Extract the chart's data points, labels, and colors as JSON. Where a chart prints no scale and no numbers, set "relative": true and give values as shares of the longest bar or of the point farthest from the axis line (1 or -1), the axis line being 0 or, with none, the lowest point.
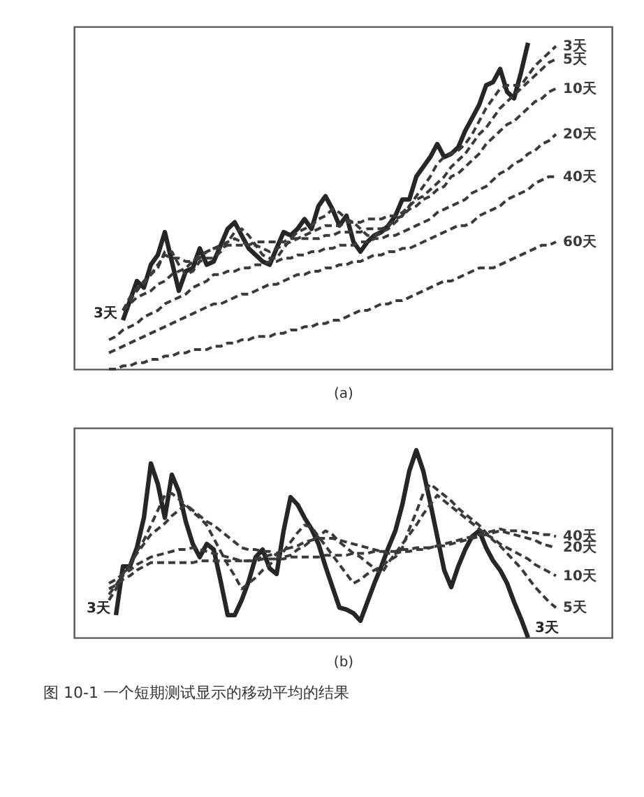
{
  "chart_data": [
    {
      "type": "line",
      "relative": true,
      "xlabel": "(a)",
      "annotations": [
        "3天"
      ],
      "categories": [
        null,
        null,
        null,
        null,
        null,
        null,
        null,
        null,
        null,
        null,
        null,
        null,
        null,
        null,
        null,
        null,
        null,
        null,
        null,
        null,
        null,
        null,
        null,
        null,
        null,
        null,
        null,
        null,
        null,
        null,
        null,
        null,
        null,
        null,
        null,
        null,
        null,
        null,
        null,
        null,
        null,
        null,
        null,
        null,
        null,
        null,
        null,
        null,
        null,
        null,
        null,
        null,
        null,
        null,
        null,
        null,
        null,
        null,
        null,
        null,
        null,
        null,
        null,
        null,
        null
      ],
      "series": [
        {
          "color": "#262626",
          "line_style": "solid",
          "values": [
            null,
            null,
            0.15,
            0.21,
            0.27,
            0.25,
            0.32,
            0.35,
            0.42,
            0.33,
            0.24,
            0.3,
            0.31,
            0.37,
            0.32,
            0.33,
            0.38,
            0.43,
            0.45,
            0.41,
            0.37,
            0.35,
            0.33,
            0.32,
            0.37,
            0.42,
            0.41,
            0.43,
            0.46,
            0.43,
            0.5,
            0.53,
            0.49,
            0.44,
            0.47,
            0.39,
            0.36,
            0.39,
            0.41,
            0.42,
            0.44,
            0.47,
            0.52,
            0.52,
            0.59,
            0.62,
            0.65,
            0.69,
            0.65,
            0.66,
            0.68,
            0.73,
            0.77,
            0.81,
            0.87,
            0.88,
            0.92,
            0.85,
            0.83,
            0.91,
            1.0,
            null,
            null,
            null,
            null
          ]
        },
        {
          "name": "3天",
          "color": "#3a3a3a",
          "line_style": "dashed",
          "values": [
            null,
            null,
            0.18,
            0.22,
            0.25,
            0.26,
            0.29,
            0.31,
            0.36,
            0.36,
            0.32,
            0.29,
            0.3,
            0.33,
            0.34,
            0.34,
            0.36,
            0.39,
            0.42,
            0.43,
            0.41,
            0.38,
            0.35,
            0.34,
            0.34,
            0.37,
            0.4,
            0.42,
            0.43,
            0.44,
            0.46,
            0.47,
            0.49,
            0.48,
            0.46,
            0.45,
            0.43,
            0.41,
            0.41,
            0.42,
            0.43,
            0.45,
            0.47,
            0.5,
            0.53,
            0.56,
            0.59,
            0.63,
            0.65,
            0.66,
            0.67,
            0.69,
            0.72,
            0.76,
            0.8,
            0.83,
            0.86,
            0.87,
            0.87,
            0.87,
            0.9,
            0.93,
            0.95,
            0.97,
            0.99
          ]
        },
        {
          "name": "5天",
          "color": "#3a3a3a",
          "line_style": "dashed",
          "values": [
            null,
            null,
            0.18,
            0.21,
            0.24,
            0.27,
            0.29,
            0.32,
            0.35,
            0.34,
            0.34,
            0.33,
            0.33,
            0.35,
            0.36,
            0.37,
            0.38,
            0.39,
            0.4,
            0.39,
            0.38,
            0.38,
            0.37,
            0.36,
            0.37,
            0.38,
            0.39,
            0.4,
            0.41,
            0.42,
            0.43,
            0.44,
            0.44,
            0.44,
            0.45,
            0.45,
            0.45,
            0.46,
            0.46,
            0.46,
            0.47,
            0.47,
            0.48,
            0.5,
            0.52,
            0.53,
            0.55,
            0.57,
            0.59,
            0.62,
            0.64,
            0.66,
            0.69,
            0.72,
            0.74,
            0.77,
            0.8,
            0.82,
            0.84,
            0.86,
            0.88,
            0.9,
            0.92,
            0.94,
            0.95
          ]
        },
        {
          "name": "10天",
          "color": "#3a3a3a",
          "line_style": "dashed",
          "values": [
            null,
            null,
            0.18,
            0.2,
            0.22,
            0.23,
            0.24,
            0.26,
            0.27,
            0.29,
            0.3,
            0.31,
            0.33,
            0.34,
            0.36,
            0.37,
            0.37,
            0.38,
            0.38,
            0.38,
            0.38,
            0.39,
            0.39,
            0.39,
            0.39,
            0.39,
            0.4,
            0.4,
            0.4,
            0.4,
            0.4,
            0.41,
            0.41,
            0.42,
            0.42,
            0.42,
            0.42,
            0.43,
            0.43,
            0.43,
            0.44,
            0.46,
            0.47,
            0.49,
            0.5,
            0.52,
            0.53,
            0.55,
            0.56,
            0.59,
            0.6,
            0.62,
            0.64,
            0.66,
            0.69,
            0.71,
            0.73,
            0.75,
            0.76,
            0.78,
            0.8,
            0.82,
            0.83,
            0.85,
            0.86
          ]
        },
        {
          "name": "20天",
          "color": "#3a3a3a",
          "line_style": "dashed",
          "values": [
            0.09,
            0.1,
            0.12,
            0.13,
            0.14,
            0.16,
            0.17,
            0.18,
            0.2,
            0.21,
            0.22,
            0.23,
            0.25,
            0.26,
            0.27,
            0.29,
            0.29,
            0.3,
            0.3,
            0.31,
            0.31,
            0.32,
            0.32,
            0.33,
            0.33,
            0.34,
            0.34,
            0.35,
            0.35,
            0.36,
            0.36,
            0.37,
            0.37,
            0.38,
            0.38,
            0.38,
            0.39,
            0.39,
            0.4,
            0.4,
            0.41,
            0.41,
            0.42,
            0.43,
            0.44,
            0.45,
            0.46,
            0.48,
            0.49,
            0.5,
            0.51,
            0.52,
            0.54,
            0.55,
            0.56,
            0.58,
            0.6,
            0.61,
            0.63,
            0.64,
            0.66,
            0.67,
            0.69,
            0.7,
            0.72
          ]
        },
        {
          "name": "40天",
          "color": "#3a3a3a",
          "line_style": "dashed",
          "values": [
            0.05,
            0.06,
            0.07,
            0.08,
            0.09,
            0.1,
            0.11,
            0.12,
            0.13,
            0.14,
            0.15,
            0.16,
            0.17,
            0.18,
            0.19,
            0.2,
            0.2,
            0.21,
            0.22,
            0.23,
            0.23,
            0.24,
            0.25,
            0.26,
            0.26,
            0.27,
            0.28,
            0.29,
            0.29,
            0.3,
            0.3,
            0.31,
            0.31,
            0.32,
            0.32,
            0.33,
            0.33,
            0.34,
            0.35,
            0.35,
            0.36,
            0.36,
            0.37,
            0.37,
            0.38,
            0.39,
            0.4,
            0.41,
            0.42,
            0.43,
            0.44,
            0.44,
            0.45,
            0.47,
            0.48,
            0.49,
            0.5,
            0.52,
            0.53,
            0.54,
            0.55,
            0.57,
            0.58,
            0.59,
            0.59
          ]
        },
        {
          "name": "60天",
          "color": "#3a3a3a",
          "line_style": "dashed",
          "values": [
            0.0,
            0.0,
            0.01,
            0.01,
            0.02,
            0.02,
            0.03,
            0.03,
            0.04,
            0.04,
            0.05,
            0.05,
            0.06,
            0.06,
            0.06,
            0.07,
            0.07,
            0.08,
            0.08,
            0.09,
            0.09,
            0.1,
            0.1,
            0.1,
            0.11,
            0.11,
            0.12,
            0.12,
            0.13,
            0.13,
            0.14,
            0.14,
            0.15,
            0.15,
            0.16,
            0.17,
            0.18,
            0.18,
            0.19,
            0.2,
            0.2,
            0.21,
            0.21,
            0.22,
            0.23,
            0.24,
            0.25,
            0.26,
            0.27,
            0.27,
            0.28,
            0.29,
            0.3,
            0.31,
            0.31,
            0.31,
            0.32,
            0.33,
            0.34,
            0.35,
            0.36,
            0.37,
            0.38,
            0.38,
            0.39
          ]
        }
      ]
    },
    {
      "type": "line",
      "relative": true,
      "xlabel": "(b)",
      "annotations": [
        "3天",
        "图 10-1 一个短期测试显示的移动平均的结果"
      ],
      "categories": [
        null,
        null,
        null,
        null,
        null,
        null,
        null,
        null,
        null,
        null,
        null,
        null,
        null,
        null,
        null,
        null,
        null,
        null,
        null,
        null,
        null,
        null,
        null,
        null,
        null,
        null,
        null,
        null,
        null,
        null,
        null,
        null,
        null,
        null,
        null,
        null,
        null,
        null,
        null,
        null,
        null,
        null,
        null,
        null,
        null,
        null,
        null,
        null,
        null,
        null,
        null,
        null,
        null,
        null,
        null,
        null,
        null,
        null,
        null,
        null,
        null,
        null,
        null,
        null,
        null
      ],
      "series": [
        {
          "name": "3天",
          "color": "#262626",
          "line_style": "solid",
          "values": [
            null,
            0.12,
            0.38,
            0.38,
            0.48,
            0.64,
            0.93,
            0.82,
            0.64,
            0.87,
            0.78,
            0.62,
            0.5,
            0.43,
            0.5,
            0.47,
            0.3,
            0.12,
            0.12,
            0.2,
            0.3,
            0.43,
            0.47,
            0.37,
            0.34,
            0.57,
            0.75,
            0.71,
            0.64,
            0.58,
            0.5,
            0.38,
            0.27,
            0.16,
            0.15,
            0.13,
            0.09,
            0.19,
            0.29,
            0.38,
            0.48,
            0.57,
            0.71,
            0.89,
            1.0,
            0.89,
            0.72,
            0.54,
            0.36,
            0.27,
            0.38,
            0.47,
            0.54,
            0.57,
            0.48,
            0.41,
            0.36,
            0.29,
            0.19,
            0.1,
            0.0,
            null,
            null,
            null,
            null
          ]
        },
        {
          "name": "5天",
          "color": "#3a3a3a",
          "line_style": "dashed",
          "values": [
            0.2,
            0.26,
            0.33,
            0.39,
            0.46,
            0.52,
            0.6,
            0.68,
            0.76,
            0.77,
            0.74,
            0.71,
            0.67,
            0.64,
            0.6,
            0.53,
            0.46,
            0.39,
            0.33,
            0.26,
            0.29,
            0.32,
            0.36,
            0.39,
            0.42,
            0.46,
            0.51,
            0.56,
            0.6,
            0.59,
            0.54,
            0.49,
            0.44,
            0.39,
            0.34,
            0.29,
            0.31,
            0.34,
            0.36,
            0.38,
            0.41,
            0.43,
            0.48,
            0.58,
            0.67,
            0.77,
            0.82,
            0.79,
            0.76,
            0.73,
            0.69,
            0.66,
            0.63,
            0.6,
            0.56,
            0.52,
            0.49,
            0.45,
            0.41,
            0.37,
            0.32,
            0.27,
            0.23,
            0.19,
            0.16
          ]
        },
        {
          "name": "10天",
          "color": "#3a3a3a",
          "line_style": "dashed",
          "values": [
            0.23,
            0.28,
            0.34,
            0.39,
            0.45,
            0.5,
            0.55,
            0.58,
            0.61,
            0.65,
            0.68,
            0.71,
            0.68,
            0.65,
            0.62,
            0.6,
            0.57,
            0.54,
            0.51,
            0.48,
            0.47,
            0.47,
            0.46,
            0.46,
            0.44,
            0.43,
            0.44,
            0.47,
            0.49,
            0.52,
            0.54,
            0.57,
            0.55,
            0.51,
            0.48,
            0.45,
            0.43,
            0.4,
            0.37,
            0.34,
            0.4,
            0.45,
            0.5,
            0.55,
            0.6,
            0.66,
            0.71,
            0.76,
            0.73,
            0.7,
            0.67,
            0.64,
            0.61,
            0.58,
            0.55,
            0.53,
            0.5,
            0.48,
            0.46,
            0.44,
            0.42,
            0.39,
            0.37,
            0.35,
            0.33
          ]
        },
        {
          "name": "20天",
          "color": "#3a3a3a",
          "line_style": "dashed",
          "values": [
            0.29,
            0.31,
            0.34,
            0.36,
            0.39,
            0.41,
            0.43,
            0.44,
            0.45,
            0.46,
            0.47,
            0.47,
            0.48,
            0.47,
            0.46,
            0.45,
            0.44,
            0.43,
            0.42,
            0.41,
            0.41,
            0.42,
            0.43,
            0.44,
            0.45,
            0.47,
            0.48,
            0.49,
            0.51,
            0.52,
            0.53,
            0.53,
            0.53,
            0.52,
            0.51,
            0.5,
            0.49,
            0.48,
            0.47,
            0.46,
            0.45,
            0.45,
            0.46,
            0.46,
            0.47,
            0.47,
            0.48,
            0.49,
            0.49,
            0.5,
            0.51,
            0.52,
            0.53,
            0.54,
            0.55,
            0.56,
            0.57,
            0.56,
            0.55,
            0.54,
            0.53,
            0.52,
            0.5,
            0.49,
            0.48
          ]
        },
        {
          "name": "40天",
          "color": "#3a3a3a",
          "line_style": "dashed",
          "values": [
            0.26,
            0.28,
            0.31,
            0.33,
            0.36,
            0.38,
            0.4,
            0.4,
            0.4,
            0.4,
            0.4,
            0.4,
            0.4,
            0.41,
            0.41,
            0.41,
            0.41,
            0.41,
            0.41,
            0.41,
            0.41,
            0.41,
            0.42,
            0.42,
            0.42,
            0.42,
            0.43,
            0.43,
            0.43,
            0.43,
            0.43,
            0.44,
            0.44,
            0.44,
            0.44,
            0.45,
            0.45,
            0.45,
            0.46,
            0.46,
            0.46,
            0.46,
            0.47,
            0.47,
            0.48,
            0.48,
            0.48,
            0.49,
            0.5,
            0.51,
            0.52,
            0.53,
            0.54,
            0.55,
            0.56,
            0.57,
            0.58,
            0.57,
            0.57,
            0.57,
            0.56,
            0.56,
            0.55,
            0.55,
            0.54
          ]
        }
      ]
    }
  ]
}
